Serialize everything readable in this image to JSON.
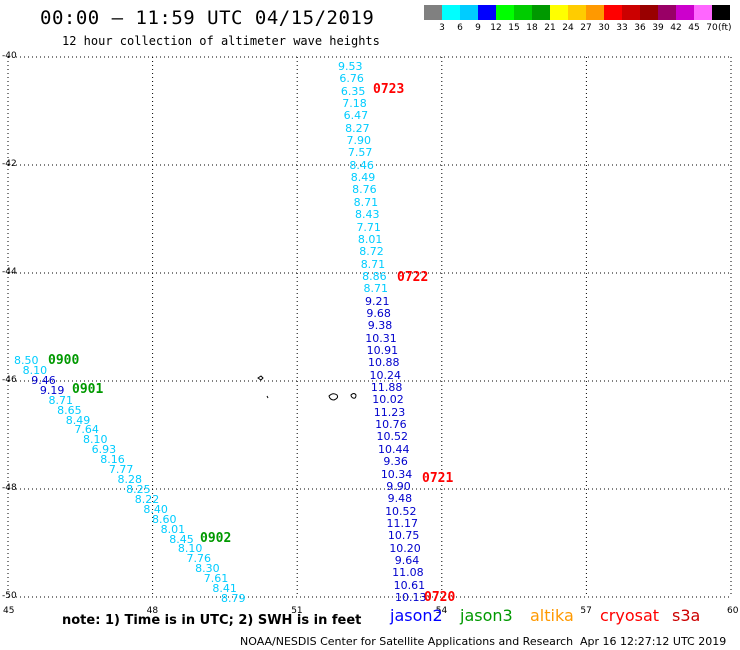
{
  "header": {
    "title": "00:00 – 11:59 UTC 04/15/2019",
    "subtitle": "12 hour collection of altimeter wave heights"
  },
  "colorbar": {
    "colors": [
      "#808080",
      "#00ffff",
      "#00ccff",
      "#0000ff",
      "#00ff00",
      "#00cc00",
      "#009900",
      "#ffff00",
      "#ffcc00",
      "#ff9900",
      "#ff0000",
      "#cc0000",
      "#990000",
      "#990066",
      "#cc00cc",
      "#ff66ff",
      "#000000"
    ],
    "labels": [
      "3",
      "6",
      "9",
      "12",
      "15",
      "18",
      "21",
      "24",
      "27",
      "30",
      "33",
      "36",
      "39",
      "42",
      "45",
      "70"
    ],
    "unit": "(ft)"
  },
  "map": {
    "lat_labels": [
      "-40",
      "-42",
      "-44",
      "-46",
      "-48",
      "-50"
    ],
    "lon_labels": [
      "45",
      "48",
      "51",
      "54",
      "57",
      "60"
    ],
    "track_center": [
      {
        "v": "9.53",
        "c": "#00ccff"
      },
      {
        "v": "6.76",
        "c": "#00ccff"
      },
      {
        "v": "6.35",
        "c": "#00ccff"
      },
      {
        "v": "7.18",
        "c": "#00ccff"
      },
      {
        "v": "6.47",
        "c": "#00ccff"
      },
      {
        "v": "8.27",
        "c": "#00ccff"
      },
      {
        "v": "7.90",
        "c": "#00ccff"
      },
      {
        "v": "7.57",
        "c": "#00ccff"
      },
      {
        "v": "8.46",
        "c": "#00ccff"
      },
      {
        "v": "8.49",
        "c": "#00ccff"
      },
      {
        "v": "8.76",
        "c": "#00ccff"
      },
      {
        "v": "8.71",
        "c": "#00ccff"
      },
      {
        "v": "8.43",
        "c": "#00ccff"
      },
      {
        "v": "7.71",
        "c": "#00ccff"
      },
      {
        "v": "8.01",
        "c": "#00ccff"
      },
      {
        "v": "8.72",
        "c": "#00ccff"
      },
      {
        "v": "8.71",
        "c": "#00ccff"
      },
      {
        "v": "8.86",
        "c": "#00ccff"
      },
      {
        "v": "8.71",
        "c": "#00ccff"
      },
      {
        "v": "9.21",
        "c": "#0000cc"
      },
      {
        "v": "9.68",
        "c": "#0000cc"
      },
      {
        "v": "9.38",
        "c": "#0000cc"
      },
      {
        "v": "10.31",
        "c": "#0000cc"
      },
      {
        "v": "10.91",
        "c": "#0000cc"
      },
      {
        "v": "10.88",
        "c": "#0000cc"
      },
      {
        "v": "10.24",
        "c": "#0000cc"
      },
      {
        "v": "11.88",
        "c": "#0000cc"
      },
      {
        "v": "10.02",
        "c": "#0000cc"
      },
      {
        "v": "11.23",
        "c": "#0000cc"
      },
      {
        "v": "10.76",
        "c": "#0000cc"
      },
      {
        "v": "10.52",
        "c": "#0000cc"
      },
      {
        "v": "10.44",
        "c": "#0000cc"
      },
      {
        "v": "9.36",
        "c": "#0000cc"
      },
      {
        "v": "10.34",
        "c": "#0000cc"
      },
      {
        "v": "9.90",
        "c": "#0000cc"
      },
      {
        "v": "9.48",
        "c": "#0000cc"
      },
      {
        "v": "10.52",
        "c": "#0000cc"
      },
      {
        "v": "11.17",
        "c": "#0000cc"
      },
      {
        "v": "10.75",
        "c": "#0000cc"
      },
      {
        "v": "10.20",
        "c": "#0000cc"
      },
      {
        "v": "9.64",
        "c": "#0000cc"
      },
      {
        "v": "11.08",
        "c": "#0000cc"
      },
      {
        "v": "10.61",
        "c": "#0000cc"
      },
      {
        "v": "10.13",
        "c": "#0000cc"
      }
    ],
    "track_left": [
      {
        "v": "8.50",
        "c": "#00ccff"
      },
      {
        "v": "8.10",
        "c": "#00ccff"
      },
      {
        "v": "9.46",
        "c": "#0000cc"
      },
      {
        "v": "9.19",
        "c": "#0000cc"
      },
      {
        "v": "8.71",
        "c": "#00ccff"
      },
      {
        "v": "8.65",
        "c": "#00ccff"
      },
      {
        "v": "8.49",
        "c": "#00ccff"
      },
      {
        "v": "7.64",
        "c": "#00ccff"
      },
      {
        "v": "8.10",
        "c": "#00ccff"
      },
      {
        "v": "6.93",
        "c": "#00ccff"
      },
      {
        "v": "8.16",
        "c": "#00ccff"
      },
      {
        "v": "7.77",
        "c": "#00ccff"
      },
      {
        "v": "8.28",
        "c": "#00ccff"
      },
      {
        "v": "8.25",
        "c": "#00ccff"
      },
      {
        "v": "8.22",
        "c": "#00ccff"
      },
      {
        "v": "8.40",
        "c": "#00ccff"
      },
      {
        "v": "8.60",
        "c": "#00ccff"
      },
      {
        "v": "8.01",
        "c": "#00ccff"
      },
      {
        "v": "8.45",
        "c": "#00ccff"
      },
      {
        "v": "8.10",
        "c": "#00ccff"
      },
      {
        "v": "7.76",
        "c": "#00ccff"
      },
      {
        "v": "8.30",
        "c": "#00ccff"
      },
      {
        "v": "7.61",
        "c": "#00ccff"
      },
      {
        "v": "8.41",
        "c": "#00ccff"
      },
      {
        "v": "8.79",
        "c": "#00ccff"
      }
    ],
    "time_labels": [
      {
        "t": "0723",
        "c": "#ff0000"
      },
      {
        "t": "0722",
        "c": "#ff0000"
      },
      {
        "t": "0721",
        "c": "#ff0000"
      },
      {
        "t": "0720",
        "c": "#ff0000"
      },
      {
        "t": "0900",
        "c": "#009900"
      },
      {
        "t": "0901",
        "c": "#009900"
      },
      {
        "t": "0902",
        "c": "#009900"
      }
    ]
  },
  "footer": {
    "note": "note:  1) Time is in UTC;  2) SWH is in feet",
    "legend": [
      {
        "name": "jason2",
        "color": "#0000ff"
      },
      {
        "name": "jason3",
        "color": "#009900"
      },
      {
        "name": "altika",
        "color": "#ff9900"
      },
      {
        "name": "cryosat",
        "color": "#ff0000"
      },
      {
        "name": "s3a",
        "color": "#cc0000"
      }
    ],
    "credit": "NOAA/NESDIS Center for Satellite Applications and Research",
    "stamp": "Apr 16 12:27:12 UTC 2019"
  }
}
